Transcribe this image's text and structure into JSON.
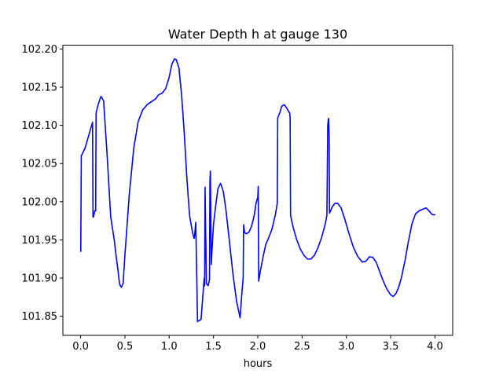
{
  "chart_data": {
    "type": "line",
    "title": "Water Depth h at gauge 130",
    "xlabel": "hours",
    "ylabel": "",
    "xlim": [
      -0.2,
      4.2
    ],
    "ylim": [
      101.825,
      102.205
    ],
    "xticks": [
      0.0,
      0.5,
      1.0,
      1.5,
      2.0,
      2.5,
      3.0,
      3.5,
      4.0
    ],
    "xtick_labels": [
      "0.0",
      "0.5",
      "1.0",
      "1.5",
      "2.0",
      "2.5",
      "3.0",
      "3.5",
      "4.0"
    ],
    "yticks": [
      101.85,
      101.9,
      101.95,
      102.0,
      102.05,
      102.1,
      102.15,
      102.2
    ],
    "ytick_labels": [
      "101.85",
      "101.90",
      "101.95",
      "102.00",
      "102.05",
      "102.10",
      "102.15",
      "102.20"
    ],
    "grid": false,
    "series": [
      {
        "color": "#0000ff",
        "x": [
          0.0,
          0.002,
          0.008,
          0.05,
          0.1,
          0.135,
          0.14,
          0.145,
          0.16,
          0.17,
          0.175,
          0.2,
          0.23,
          0.26,
          0.3,
          0.34,
          0.38,
          0.4,
          0.42,
          0.44,
          0.46,
          0.48,
          0.5,
          0.55,
          0.6,
          0.65,
          0.7,
          0.75,
          0.8,
          0.85,
          0.88,
          0.92,
          0.96,
          1.0,
          1.03,
          1.06,
          1.08,
          1.11,
          1.14,
          1.17,
          1.2,
          1.23,
          1.26,
          1.28,
          1.285,
          1.3,
          1.32,
          1.36,
          1.395,
          1.4,
          1.405,
          1.42,
          1.44,
          1.455,
          1.46,
          1.465,
          1.475,
          1.48,
          1.49,
          1.5,
          1.52,
          1.55,
          1.58,
          1.61,
          1.64,
          1.68,
          1.72,
          1.76,
          1.8,
          1.82,
          1.835,
          1.84,
          1.85,
          1.87,
          1.9,
          1.93,
          1.96,
          1.98,
          2.0,
          2.005,
          2.01,
          2.03,
          2.06,
          2.09,
          2.12,
          2.16,
          2.2,
          2.22,
          2.225,
          2.25,
          2.27,
          2.3,
          2.33,
          2.36,
          2.365,
          2.37,
          2.4,
          2.44,
          2.48,
          2.52,
          2.56,
          2.6,
          2.64,
          2.68,
          2.72,
          2.76,
          2.78,
          2.79,
          2.795,
          2.8,
          2.805,
          2.81,
          2.84,
          2.87,
          2.9,
          2.94,
          2.98,
          3.03,
          3.08,
          3.13,
          3.18,
          3.22,
          3.26,
          3.3,
          3.34,
          3.38,
          3.42,
          3.46,
          3.5,
          3.53,
          3.56,
          3.59,
          3.62,
          3.66,
          3.7,
          3.74,
          3.78,
          3.82,
          3.86,
          3.9,
          3.94,
          3.97,
          4.0
        ],
        "y": [
          101.935,
          101.935,
          102.06,
          102.07,
          102.09,
          102.104,
          101.98,
          101.98,
          101.988,
          101.988,
          102.116,
          102.128,
          102.138,
          102.132,
          102.06,
          101.98,
          101.95,
          101.93,
          101.912,
          101.892,
          101.888,
          101.893,
          101.93,
          102.01,
          102.07,
          102.105,
          102.12,
          102.127,
          102.131,
          102.135,
          102.14,
          102.142,
          102.148,
          102.163,
          102.18,
          102.187,
          102.186,
          102.175,
          102.14,
          102.09,
          102.03,
          101.982,
          101.962,
          101.952,
          101.953,
          101.973,
          101.843,
          101.846,
          101.9,
          101.89,
          102.019,
          101.893,
          101.89,
          101.898,
          102.028,
          102.04,
          101.918,
          101.93,
          101.95,
          101.97,
          101.99,
          102.017,
          102.024,
          102.014,
          101.99,
          101.948,
          101.905,
          101.87,
          101.848,
          101.88,
          101.9,
          101.97,
          101.96,
          101.958,
          101.96,
          101.968,
          101.982,
          101.998,
          102.006,
          102.02,
          101.896,
          101.91,
          101.928,
          101.944,
          101.952,
          101.964,
          101.984,
          101.998,
          102.11,
          102.117,
          102.125,
          102.127,
          102.122,
          102.116,
          102.11,
          101.982,
          101.966,
          101.95,
          101.938,
          101.93,
          101.925,
          101.925,
          101.93,
          101.94,
          101.953,
          101.97,
          101.982,
          102.1,
          102.107,
          102.109,
          102.087,
          101.985,
          101.993,
          101.998,
          101.998,
          101.992,
          101.978,
          101.958,
          101.94,
          101.928,
          101.921,
          101.922,
          101.928,
          101.927,
          101.92,
          101.907,
          101.895,
          101.885,
          101.878,
          101.876,
          101.88,
          101.888,
          101.9,
          101.922,
          101.948,
          101.971,
          101.984,
          101.988,
          101.99,
          101.992,
          101.987,
          101.983,
          101.983
        ]
      }
    ]
  }
}
